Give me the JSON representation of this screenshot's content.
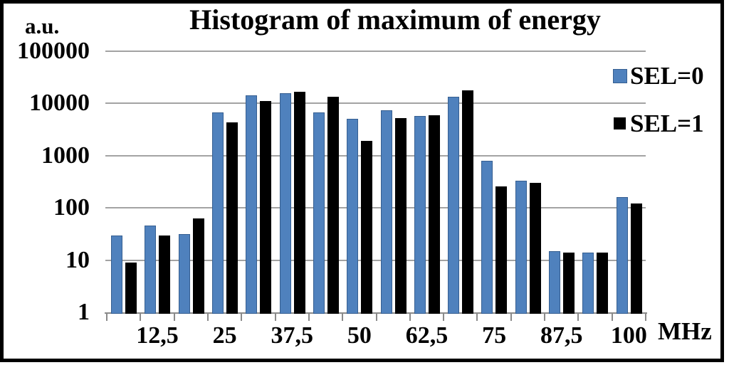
{
  "chart_data": {
    "type": "bar",
    "title": "Histogram of maximum of energy",
    "y_axis_label": "a.u.",
    "x_axis_label": "MHz",
    "y_scale": "log",
    "ylim": [
      1,
      100000
    ],
    "grid": true,
    "legend_position": "top-right",
    "bins": 16,
    "y_tick_labels": [
      "100000",
      "10000",
      "1000",
      "100",
      "10",
      "1"
    ],
    "x_tick_labels": [
      "12,5",
      "25",
      "37,5",
      "50",
      "62,5",
      "75",
      "87,5",
      "100"
    ],
    "series": [
      {
        "name": "SEL=0",
        "color": "#4F81BD",
        "border_color": "#365F91",
        "values": [
          30,
          46,
          32,
          6700,
          14500,
          15500,
          6800,
          5000,
          7500,
          5700,
          13500,
          800,
          335,
          15,
          14,
          160
        ]
      },
      {
        "name": "SEL=1",
        "color": "#000000",
        "border_color": "#000000",
        "values": [
          9,
          30,
          63,
          4400,
          11000,
          16500,
          13500,
          1900,
          5200,
          5900,
          18000,
          260,
          305,
          14,
          14,
          120
        ]
      }
    ]
  },
  "colors": {
    "gridline": "#A3A3A3",
    "axis": "#8A8A8A",
    "frame": "#000000",
    "background": "#FFFFFF",
    "text": "#000000"
  }
}
